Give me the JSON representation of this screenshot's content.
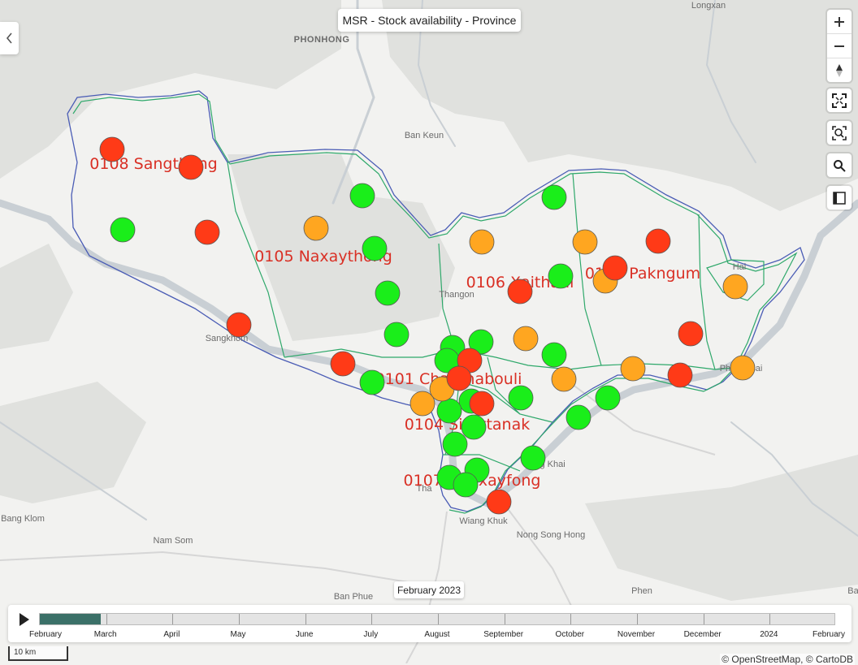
{
  "title": "MSR - Stock availability - Province",
  "colors": {
    "available": "#1aee1a",
    "low": "#ffa620",
    "out": "#ff3a17",
    "boundary_blue": "#4a5cb5",
    "boundary_green": "#2ea86a",
    "label_red": "#d93025"
  },
  "basemap_labels": [
    "Longxan",
    "PHONHONG",
    "Ban Keun",
    "Thangon",
    "Sangkhom",
    "Hai",
    "Pho Phisai",
    "Nong Khai",
    "Nong Song Hong",
    "Wiang Khuk",
    "Nam Som",
    "Ban Phue",
    "Phen",
    "Bang Klom",
    "Tha",
    "Ba",
    "Th"
  ],
  "districts": [
    "0108 Sangthong",
    "0105 Naxaythong",
    "0106 Xaithani",
    "0109 Pakngum",
    "0101 Chanthabouli",
    "0104 Sisattanak",
    "0107 Hadxayfong"
  ],
  "stock_points": {
    "available": [
      [
        151,
        283
      ],
      [
        446,
        241
      ],
      [
        461,
        306
      ],
      [
        477,
        361
      ],
      [
        488,
        412
      ],
      [
        458,
        471
      ],
      [
        557,
        428
      ],
      [
        550,
        444
      ],
      [
        592,
        421
      ],
      [
        682,
        243
      ],
      [
        690,
        340
      ],
      [
        682,
        437
      ],
      [
        641,
        490
      ],
      [
        580,
        494
      ],
      [
        553,
        506
      ],
      [
        583,
        526
      ],
      [
        560,
        547
      ],
      [
        587,
        579
      ],
      [
        553,
        588
      ],
      [
        573,
        597
      ],
      [
        656,
        564
      ],
      [
        712,
        514
      ],
      [
        748,
        490
      ]
    ],
    "low": [
      [
        389,
        281
      ],
      [
        593,
        298
      ],
      [
        720,
        298
      ],
      [
        745,
        346
      ],
      [
        647,
        417
      ],
      [
        694,
        467
      ],
      [
        779,
        454
      ],
      [
        905,
        353
      ],
      [
        914,
        453
      ],
      [
        520,
        497
      ],
      [
        544,
        479
      ]
    ],
    "out": [
      [
        138,
        184
      ],
      [
        235,
        206
      ],
      [
        255,
        286
      ],
      [
        294,
        400
      ],
      [
        422,
        448
      ],
      [
        640,
        359
      ],
      [
        810,
        297
      ],
      [
        757,
        330
      ],
      [
        850,
        411
      ],
      [
        837,
        462
      ],
      [
        578,
        444
      ],
      [
        565,
        466
      ],
      [
        593,
        497
      ],
      [
        614,
        618
      ]
    ]
  },
  "controls": {
    "zoom_in": "zoom-in",
    "zoom_out": "zoom-out",
    "reset_north": "compass",
    "fullscreen": "fullscreen",
    "zoom_extent": "zoom-extent",
    "search": "search",
    "legend": "legend-panel"
  },
  "timeline": {
    "current_date": "February 2023",
    "progress": 0.077,
    "months": [
      "February",
      "March",
      "April",
      "May",
      "June",
      "July",
      "August",
      "September",
      "October",
      "November",
      "December",
      "2024",
      "February"
    ]
  },
  "scale_bar": "10 km",
  "attribution": "© OpenStreetMap, © CartoDB"
}
